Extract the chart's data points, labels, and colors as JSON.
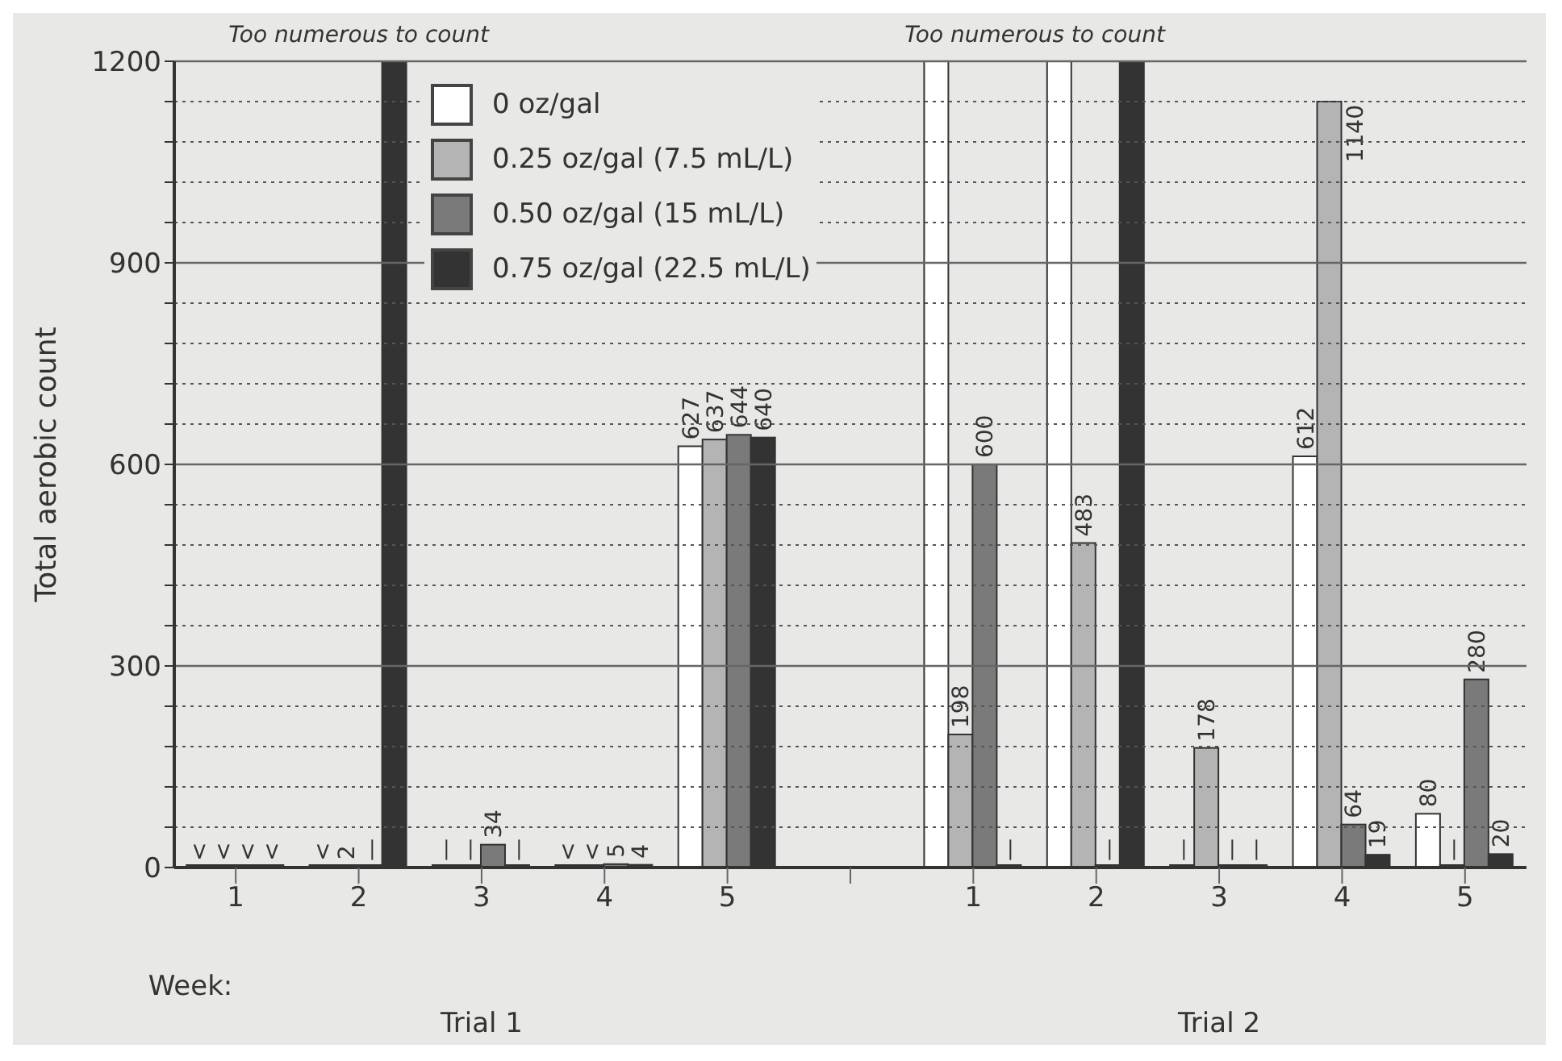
{
  "chart_data": {
    "type": "bar",
    "xlabel": "Week:",
    "ylabel": "Total aerobic count",
    "categories": [
      "1",
      "2",
      "3",
      "4",
      "5",
      null,
      "1",
      "2",
      "3",
      "4",
      "5"
    ],
    "series": [
      {
        "name": "0 oz/gal",
        "color": "#ffffff",
        "values": [
          0,
          0,
          0,
          0,
          627,
          null,
          1200,
          1200,
          0,
          612,
          80
        ],
        "value_labels": [
          "<",
          "<",
          "—",
          "<",
          "627",
          null,
          null,
          null,
          "—",
          "612",
          "80"
        ]
      },
      {
        "name": "0.25 oz/gal (7.5 mL/L)",
        "color": "#b4b4b4",
        "values": [
          0,
          2,
          0,
          0,
          637,
          null,
          198,
          483,
          178,
          1140,
          0
        ],
        "value_labels": [
          "<",
          "2",
          "—",
          "<",
          "637",
          null,
          "198",
          "483",
          "178",
          "1140",
          "—"
        ]
      },
      {
        "name": "0.50 oz/gal (15 mL/L)",
        "color": "#7a7a7a",
        "values": [
          0,
          0,
          34,
          5,
          644,
          null,
          600,
          0,
          0,
          64,
          280
        ],
        "value_labels": [
          "<",
          "—",
          "34",
          "5",
          "644",
          null,
          "600",
          "—",
          "—",
          "64",
          "280"
        ]
      },
      {
        "name": "0.75 oz/gal (22.5 mL/L)",
        "color": "#333333",
        "values": [
          0,
          1200,
          0,
          4,
          640,
          null,
          0,
          1200,
          0,
          19,
          20
        ],
        "value_labels": [
          "<",
          null,
          "—",
          "4",
          "640",
          null,
          "—",
          null,
          "—",
          "19",
          "20"
        ]
      }
    ],
    "ylim": [
      0,
      1200
    ],
    "yticks": [
      0,
      {
        "value": 60,
        "label": null
      },
      {
        "value": 120,
        "label": null
      },
      {
        "value": 180,
        "label": null
      },
      {
        "value": 240,
        "label": null
      },
      300,
      {
        "value": 360,
        "label": null
      },
      {
        "value": 420,
        "label": null
      },
      {
        "value": 480,
        "label": null
      },
      {
        "value": 540,
        "label": null
      },
      600,
      {
        "value": 660,
        "label": null
      },
      {
        "value": 720,
        "label": null
      },
      {
        "value": 780,
        "label": null
      },
      {
        "value": 840,
        "label": null
      },
      900,
      {
        "value": 960,
        "label": null
      },
      {
        "value": 1020,
        "label": null
      },
      {
        "value": 1080,
        "label": null
      },
      {
        "value": 1140,
        "label": null
      },
      1200
    ],
    "grid": "y",
    "legend": "top left",
    "annotations": [
      "Too numerous to count",
      "Too numerous to count",
      "Trial 1",
      "Trial 2"
    ]
  }
}
